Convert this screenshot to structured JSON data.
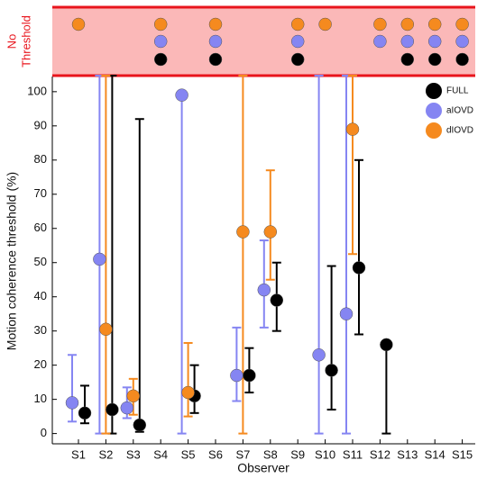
{
  "chart_data": {
    "type": "errorbar-scatter",
    "band_label": [
      "No",
      "Threshold"
    ],
    "y_label": "Motion coherence threshold (%)",
    "x_label": "Observer",
    "categories": [
      "S1",
      "S2",
      "S3",
      "S4",
      "S5",
      "S6",
      "S7",
      "S8",
      "S9",
      "S10",
      "S11",
      "S12",
      "S13",
      "S14",
      "S15"
    ],
    "ylim": [
      -3,
      104.7
    ],
    "yticks": [
      0,
      10,
      20,
      30,
      40,
      50,
      60,
      70,
      80,
      90,
      100
    ],
    "legend": "upper right",
    "series": [
      {
        "name": "FULL",
        "color": "#000000",
        "offset": 1,
        "values": [
          6,
          7,
          2.5,
          null,
          11,
          null,
          17,
          39,
          null,
          18.5,
          48.5,
          26,
          null,
          null,
          null
        ],
        "lower": [
          3,
          0,
          0.5,
          null,
          6,
          null,
          12,
          30,
          null,
          7,
          29,
          0,
          null,
          null,
          null
        ],
        "upper": [
          14,
          104.7,
          92,
          null,
          20,
          null,
          25,
          50,
          null,
          49,
          80,
          26,
          null,
          null,
          null
        ],
        "no_threshold": [
          false,
          false,
          false,
          true,
          false,
          true,
          false,
          false,
          true,
          false,
          false,
          false,
          true,
          true,
          true
        ]
      },
      {
        "name": "aIOVD",
        "color": "#8585f2",
        "offset": -1,
        "values": [
          9,
          51,
          7.5,
          null,
          99,
          null,
          17,
          42,
          null,
          23,
          35,
          null,
          null,
          null,
          null
        ],
        "lower": [
          3.5,
          0,
          4.5,
          null,
          0,
          null,
          9.5,
          31,
          null,
          0,
          0,
          null,
          null,
          null,
          null
        ],
        "upper": [
          23,
          104.7,
          13.5,
          null,
          100,
          null,
          31,
          56.5,
          null,
          104.7,
          104.7,
          null,
          null,
          null,
          null
        ],
        "no_threshold": [
          false,
          false,
          false,
          true,
          false,
          true,
          false,
          false,
          true,
          false,
          false,
          true,
          true,
          true,
          true
        ]
      },
      {
        "name": "dIOVD",
        "color": "#f58a1f",
        "offset": 0,
        "values": [
          null,
          30.5,
          11,
          null,
          12,
          null,
          59,
          59,
          null,
          null,
          89,
          null,
          null,
          null,
          null
        ],
        "lower": [
          null,
          0,
          5.5,
          null,
          5,
          null,
          0,
          45,
          null,
          null,
          52.5,
          null,
          null,
          null,
          null
        ],
        "upper": [
          null,
          104.7,
          16,
          null,
          26.5,
          null,
          104.7,
          77,
          null,
          null,
          104.7,
          null,
          null,
          null,
          null
        ],
        "no_threshold": [
          true,
          false,
          false,
          true,
          false,
          true,
          false,
          false,
          true,
          true,
          false,
          true,
          true,
          true,
          true
        ]
      }
    ]
  }
}
